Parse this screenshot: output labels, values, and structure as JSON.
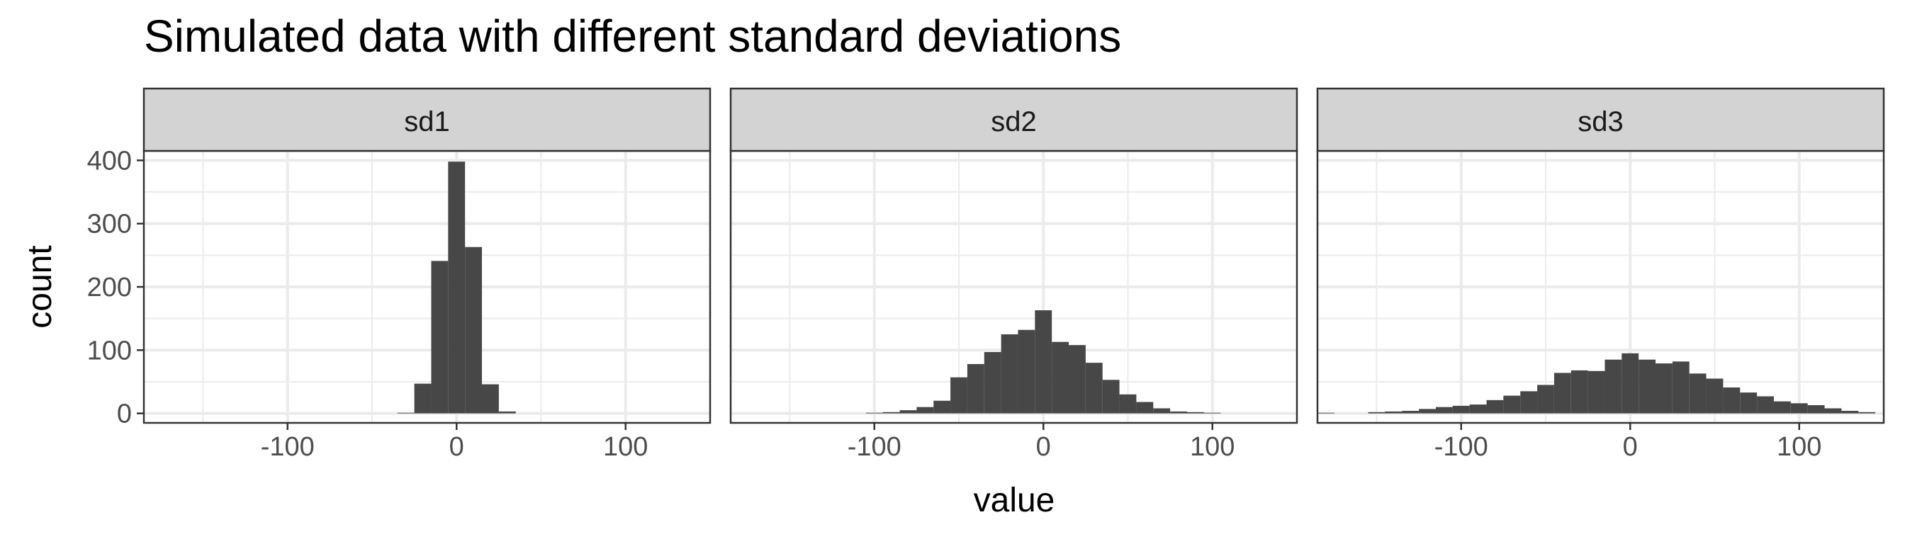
{
  "chart_data": {
    "type": "bar",
    "title": "Simulated data with different standard deviations",
    "xlabel": "value",
    "ylabel": "count",
    "xlim": [
      -185,
      150
    ],
    "ylim": [
      -15,
      415
    ],
    "x_ticks": [
      -100,
      0,
      100
    ],
    "x_tick_labels": [
      "-100",
      "0",
      "100"
    ],
    "y_ticks": [
      0,
      100,
      200,
      300,
      400
    ],
    "y_tick_labels": [
      "0",
      "100",
      "200",
      "300",
      "400"
    ],
    "grid": true,
    "bin_width": 10,
    "colors": {
      "bar": "#474747",
      "strip": "#d3d3d3",
      "border": "#333333",
      "grid": "#ebebeb"
    },
    "facets": [
      {
        "name": "sd1",
        "bin_centers": [
          -30,
          -20,
          -10,
          0,
          10,
          20,
          30
        ],
        "counts": [
          1,
          47,
          241,
          398,
          263,
          46,
          3
        ]
      },
      {
        "name": "sd2",
        "bin_centers": [
          -100,
          -90,
          -80,
          -70,
          -60,
          -50,
          -40,
          -30,
          -20,
          -10,
          0,
          10,
          20,
          30,
          40,
          50,
          60,
          70,
          80,
          90,
          100
        ],
        "counts": [
          1,
          2,
          5,
          10,
          20,
          57,
          78,
          97,
          125,
          132,
          163,
          113,
          108,
          80,
          53,
          30,
          18,
          8,
          3,
          2,
          1
        ]
      },
      {
        "name": "sd3",
        "bin_centers": [
          -180,
          -150,
          -140,
          -130,
          -120,
          -110,
          -100,
          -90,
          -80,
          -70,
          -60,
          -50,
          -40,
          -30,
          -20,
          -10,
          0,
          10,
          20,
          30,
          40,
          50,
          60,
          70,
          80,
          90,
          100,
          110,
          120,
          130,
          140
        ],
        "counts": [
          1,
          2,
          3,
          4,
          7,
          10,
          12,
          14,
          21,
          28,
          35,
          45,
          64,
          68,
          67,
          85,
          95,
          85,
          79,
          82,
          63,
          55,
          41,
          33,
          27,
          19,
          16,
          13,
          8,
          4,
          2
        ]
      }
    ]
  }
}
